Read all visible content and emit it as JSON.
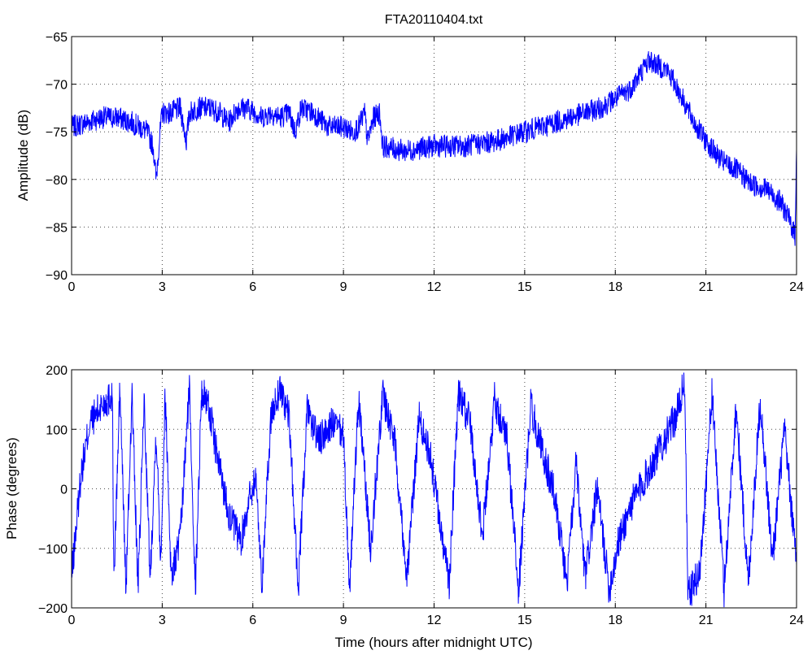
{
  "colors": {
    "series": "#0000ff",
    "axes": "#000000",
    "background": "#ffffff"
  },
  "chart_data": [
    {
      "type": "line",
      "title": "FTA20110404.txt",
      "xlabel": "",
      "ylabel": "Amplitude (dB)",
      "xlim": [
        0,
        24
      ],
      "ylim": [
        -90,
        -65
      ],
      "xticks": [
        "0",
        "3",
        "6",
        "9",
        "12",
        "15",
        "18",
        "21",
        "24"
      ],
      "yticks": [
        "−65",
        "−70",
        "−75",
        "−80",
        "−85",
        "−90"
      ],
      "grid": true,
      "noise": 1.2,
      "series": [
        {
          "x": [
            0,
            0.5,
            1,
            1.5,
            2,
            2.5,
            2.7,
            2.8,
            2.9,
            3.0,
            3.3,
            3.6,
            3.8,
            3.9,
            4.2,
            4.6,
            4.9,
            5.2,
            5.5,
            5.8,
            6.1,
            6.3,
            6.6,
            6.9,
            7.2,
            7.4,
            7.6,
            8,
            8.5,
            9,
            9.3,
            9.5,
            9.7,
            9.8,
            10.0,
            10.2,
            10.3,
            11,
            12,
            13,
            14,
            15,
            16,
            17,
            17.5,
            18,
            18.5,
            18.8,
            19.1,
            19.4,
            19.7,
            19.9,
            20.3,
            20.6,
            21,
            21.5,
            22,
            22.5,
            23,
            23.5,
            23.8,
            23.95,
            24
          ],
          "y": [
            -74.5,
            -74,
            -73.5,
            -73.5,
            -74,
            -75,
            -76.5,
            -80,
            -76,
            -73,
            -73,
            -72.5,
            -76,
            -73,
            -72.5,
            -72.5,
            -73,
            -74,
            -72.5,
            -72.5,
            -73,
            -73.5,
            -73,
            -73.5,
            -73,
            -75,
            -72.5,
            -73,
            -74.5,
            -74.5,
            -75,
            -74.5,
            -73,
            -76,
            -73.5,
            -73,
            -76.5,
            -77,
            -76.5,
            -76.5,
            -76,
            -75,
            -74,
            -73,
            -72.5,
            -71.5,
            -70.5,
            -69,
            -67.5,
            -68,
            -68.5,
            -69.5,
            -72,
            -74,
            -76,
            -78,
            -79,
            -80.5,
            -81,
            -82.5,
            -84.5,
            -86,
            -76
          ]
        }
      ]
    },
    {
      "type": "line",
      "title": "",
      "xlabel": "Time (hours after midnight UTC)",
      "ylabel": "Phase (degrees)",
      "xlim": [
        0,
        24
      ],
      "ylim": [
        -200,
        200
      ],
      "xticks": [
        "0",
        "3",
        "6",
        "9",
        "12",
        "15",
        "18",
        "21",
        "24"
      ],
      "yticks": [
        "200",
        "100",
        "0",
        "−100",
        "−200"
      ],
      "grid": true,
      "noise": 30,
      "series": [
        {
          "x": [
            0,
            0.3,
            0.6,
            1.0,
            1.2,
            1.35,
            1.4,
            1.6,
            1.8,
            2.0,
            2.2,
            2.4,
            2.6,
            2.8,
            2.95,
            3.1,
            3.3,
            3.6,
            3.9,
            4.1,
            4.3,
            4.5,
            4.8,
            5.2,
            5.6,
            5.9,
            6.1,
            6.3,
            6.6,
            6.9,
            7.2,
            7.5,
            7.8,
            8.2,
            8.6,
            9.0,
            9.2,
            9.5,
            9.9,
            10.3,
            10.7,
            11.1,
            11.5,
            11.9,
            12.2,
            12.5,
            12.8,
            13.2,
            13.6,
            14.0,
            14.4,
            14.8,
            15.2,
            15.6,
            16.0,
            16.4,
            16.7,
            17.0,
            17.4,
            17.8,
            18.1,
            18.5,
            19.0,
            19.5,
            20.0,
            20.3,
            20.4,
            20.8,
            21.2,
            21.6,
            22.0,
            22.4,
            22.8,
            23.2,
            23.6,
            24.0
          ],
          "y": [
            -150,
            20,
            110,
            140,
            150,
            160,
            -160,
            170,
            -170,
            160,
            -170,
            150,
            -150,
            100,
            -120,
            160,
            -150,
            -80,
            170,
            -170,
            160,
            150,
            60,
            -40,
            -90,
            -10,
            20,
            -160,
            120,
            170,
            120,
            -170,
            130,
            80,
            110,
            90,
            -170,
            150,
            -100,
            160,
            80,
            -150,
            120,
            50,
            -60,
            -160,
            160,
            110,
            -80,
            150,
            90,
            -170,
            140,
            60,
            -10,
            -160,
            40,
            -150,
            0,
            -170,
            -90,
            -30,
            20,
            70,
            120,
            180,
            -180,
            -140,
            160,
            -170,
            140,
            -160,
            150,
            -120,
            100,
            -130
          ]
        }
      ]
    }
  ]
}
